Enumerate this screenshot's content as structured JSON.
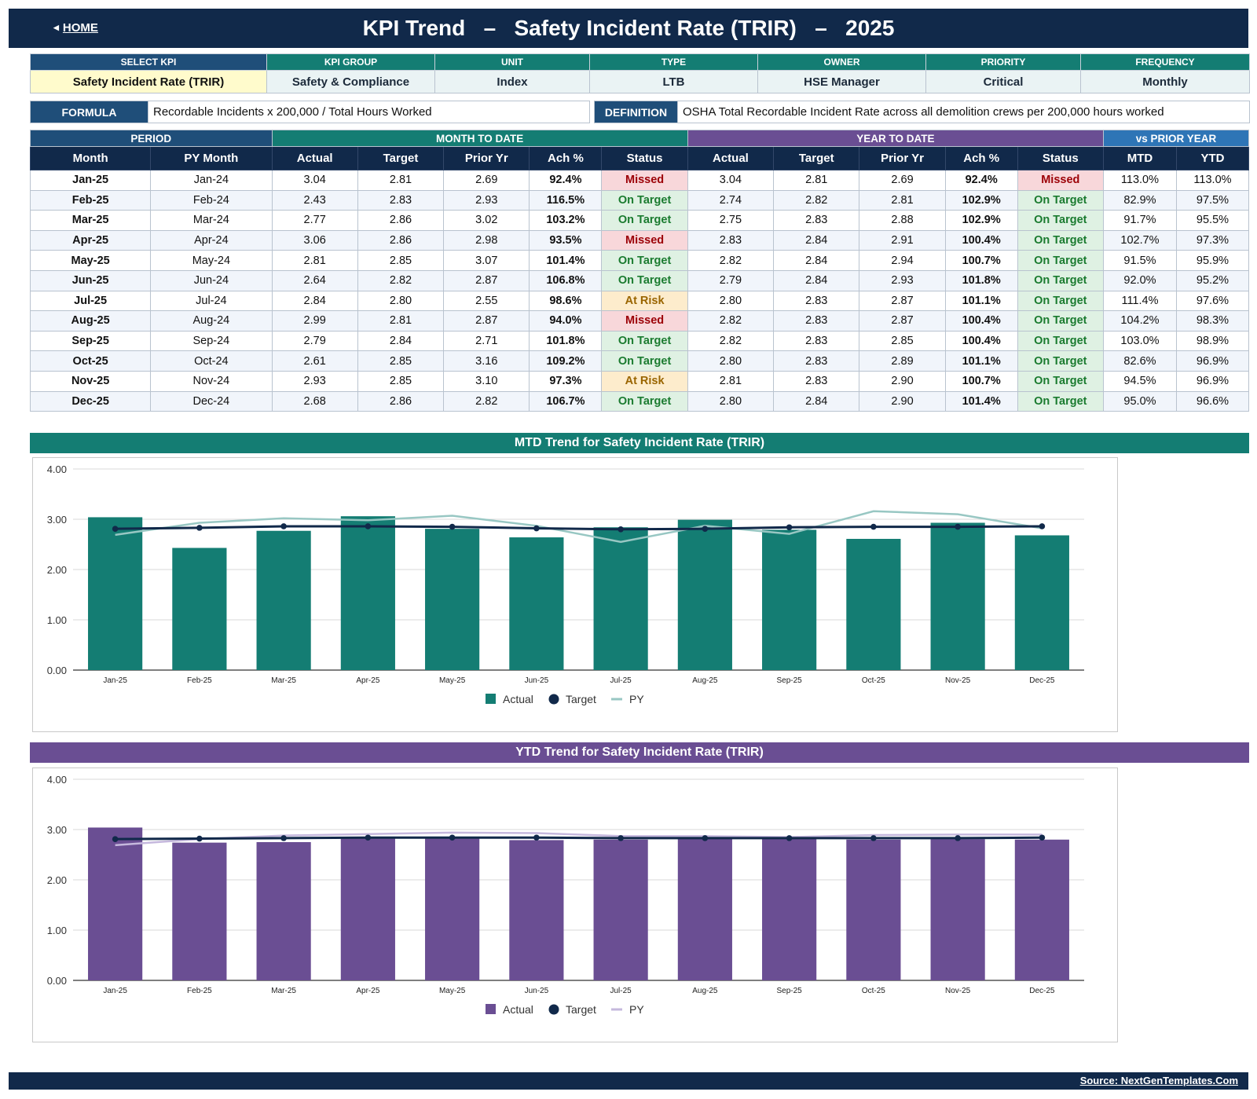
{
  "header": {
    "home_label": "HOME",
    "title": "KPI Trend   –   Safety Incident Rate (TRIR)   –   2025"
  },
  "kpi_info": {
    "headers": [
      "SELECT KPI",
      "KPI GROUP",
      "UNIT",
      "TYPE",
      "OWNER",
      "PRIORITY",
      "FREQUENCY"
    ],
    "values": [
      "Safety Incident Rate (TRIR)",
      "Safety & Compliance",
      "Index",
      "LTB",
      "HSE Manager",
      "Critical",
      "Monthly"
    ]
  },
  "formula": {
    "label": "FORMULA",
    "value": "Recordable Incidents x 200,000 / Total Hours Worked",
    "definition_label": "DEFINITION",
    "definition_value": "OSHA Total Recordable Incident Rate across all demolition crews per 200,000 hours worked"
  },
  "table": {
    "groups": [
      "PERIOD",
      "MONTH TO DATE",
      "YEAR TO DATE",
      "vs PRIOR YEAR"
    ],
    "columns": [
      "Month",
      "PY Month",
      "Actual",
      "Target",
      "Prior Yr",
      "Ach %",
      "Status",
      "Actual",
      "Target",
      "Prior Yr",
      "Ach %",
      "Status",
      "MTD",
      "YTD"
    ],
    "rows": [
      [
        "Jan-25",
        "Jan-24",
        "3.04",
        "2.81",
        "2.69",
        "92.4%",
        "Missed",
        "3.04",
        "2.81",
        "2.69",
        "92.4%",
        "Missed",
        "113.0%",
        "113.0%"
      ],
      [
        "Feb-25",
        "Feb-24",
        "2.43",
        "2.83",
        "2.93",
        "116.5%",
        "On Target",
        "2.74",
        "2.82",
        "2.81",
        "102.9%",
        "On Target",
        "82.9%",
        "97.5%"
      ],
      [
        "Mar-25",
        "Mar-24",
        "2.77",
        "2.86",
        "3.02",
        "103.2%",
        "On Target",
        "2.75",
        "2.83",
        "2.88",
        "102.9%",
        "On Target",
        "91.7%",
        "95.5%"
      ],
      [
        "Apr-25",
        "Apr-24",
        "3.06",
        "2.86",
        "2.98",
        "93.5%",
        "Missed",
        "2.83",
        "2.84",
        "2.91",
        "100.4%",
        "On Target",
        "102.7%",
        "97.3%"
      ],
      [
        "May-25",
        "May-24",
        "2.81",
        "2.85",
        "3.07",
        "101.4%",
        "On Target",
        "2.82",
        "2.84",
        "2.94",
        "100.7%",
        "On Target",
        "91.5%",
        "95.9%"
      ],
      [
        "Jun-25",
        "Jun-24",
        "2.64",
        "2.82",
        "2.87",
        "106.8%",
        "On Target",
        "2.79",
        "2.84",
        "2.93",
        "101.8%",
        "On Target",
        "92.0%",
        "95.2%"
      ],
      [
        "Jul-25",
        "Jul-24",
        "2.84",
        "2.80",
        "2.55",
        "98.6%",
        "At Risk",
        "2.80",
        "2.83",
        "2.87",
        "101.1%",
        "On Target",
        "111.4%",
        "97.6%"
      ],
      [
        "Aug-25",
        "Aug-24",
        "2.99",
        "2.81",
        "2.87",
        "94.0%",
        "Missed",
        "2.82",
        "2.83",
        "2.87",
        "100.4%",
        "On Target",
        "104.2%",
        "98.3%"
      ],
      [
        "Sep-25",
        "Sep-24",
        "2.79",
        "2.84",
        "2.71",
        "101.8%",
        "On Target",
        "2.82",
        "2.83",
        "2.85",
        "100.4%",
        "On Target",
        "103.0%",
        "98.9%"
      ],
      [
        "Oct-25",
        "Oct-24",
        "2.61",
        "2.85",
        "3.16",
        "109.2%",
        "On Target",
        "2.80",
        "2.83",
        "2.89",
        "101.1%",
        "On Target",
        "82.6%",
        "96.9%"
      ],
      [
        "Nov-25",
        "Nov-24",
        "2.93",
        "2.85",
        "3.10",
        "97.3%",
        "At Risk",
        "2.81",
        "2.83",
        "2.90",
        "100.7%",
        "On Target",
        "94.5%",
        "96.9%"
      ],
      [
        "Dec-25",
        "Dec-24",
        "2.68",
        "2.86",
        "2.82",
        "106.7%",
        "On Target",
        "2.80",
        "2.84",
        "2.90",
        "101.4%",
        "On Target",
        "95.0%",
        "96.6%"
      ]
    ],
    "status_colors": {
      "Missed": "#9c0006",
      "On Target": "#1a7b2f",
      "At Risk": "#9a6500"
    }
  },
  "charts": {
    "mtd_title": "MTD Trend for Safety Incident Rate (TRIR)",
    "ytd_title": "YTD Trend for Safety Incident Rate (TRIR)"
  },
  "chart_data": [
    {
      "type": "bar",
      "title": "MTD Trend for Safety Incident Rate (TRIR)",
      "categories": [
        "Jan-25",
        "Feb-25",
        "Mar-25",
        "Apr-25",
        "May-25",
        "Jun-25",
        "Jul-25",
        "Aug-25",
        "Sep-25",
        "Oct-25",
        "Nov-25",
        "Dec-25"
      ],
      "series": [
        {
          "name": "Actual",
          "kind": "bar",
          "color": "#147d73",
          "values": [
            3.04,
            2.43,
            2.77,
            3.06,
            2.81,
            2.64,
            2.84,
            2.99,
            2.79,
            2.61,
            2.93,
            2.68
          ]
        },
        {
          "name": "Target",
          "kind": "line-marker",
          "color": "#11294a",
          "values": [
            2.81,
            2.83,
            2.86,
            2.86,
            2.85,
            2.82,
            2.8,
            2.81,
            2.84,
            2.85,
            2.85,
            2.86
          ]
        },
        {
          "name": "PY",
          "kind": "line",
          "color": "#98c7c3",
          "values": [
            2.69,
            2.93,
            3.02,
            2.98,
            3.07,
            2.87,
            2.55,
            2.87,
            2.71,
            3.16,
            3.1,
            2.82
          ]
        }
      ],
      "ylim": [
        0,
        4
      ],
      "yticks": [
        "0.00",
        "1.00",
        "2.00",
        "3.00",
        "4.00"
      ],
      "grid": true,
      "legend": "bottom-center"
    },
    {
      "type": "bar",
      "title": "YTD Trend for Safety Incident Rate (TRIR)",
      "categories": [
        "Jan-25",
        "Feb-25",
        "Mar-25",
        "Apr-25",
        "May-25",
        "Jun-25",
        "Jul-25",
        "Aug-25",
        "Sep-25",
        "Oct-25",
        "Nov-25",
        "Dec-25"
      ],
      "series": [
        {
          "name": "Actual",
          "kind": "bar",
          "color": "#6a4e93",
          "values": [
            3.04,
            2.74,
            2.75,
            2.83,
            2.82,
            2.79,
            2.8,
            2.82,
            2.82,
            2.8,
            2.81,
            2.8
          ]
        },
        {
          "name": "Target",
          "kind": "line-marker",
          "color": "#11294a",
          "values": [
            2.81,
            2.82,
            2.83,
            2.84,
            2.84,
            2.84,
            2.83,
            2.83,
            2.83,
            2.83,
            2.83,
            2.84
          ]
        },
        {
          "name": "PY",
          "kind": "line",
          "color": "#c5b8dd",
          "values": [
            2.69,
            2.81,
            2.88,
            2.91,
            2.94,
            2.93,
            2.87,
            2.87,
            2.85,
            2.89,
            2.9,
            2.9
          ]
        }
      ],
      "ylim": [
        0,
        4
      ],
      "yticks": [
        "0.00",
        "1.00",
        "2.00",
        "3.00",
        "4.00"
      ],
      "grid": true,
      "legend": "bottom-center"
    }
  ],
  "footer": {
    "source": "Source: NextGenTemplates.Com"
  }
}
